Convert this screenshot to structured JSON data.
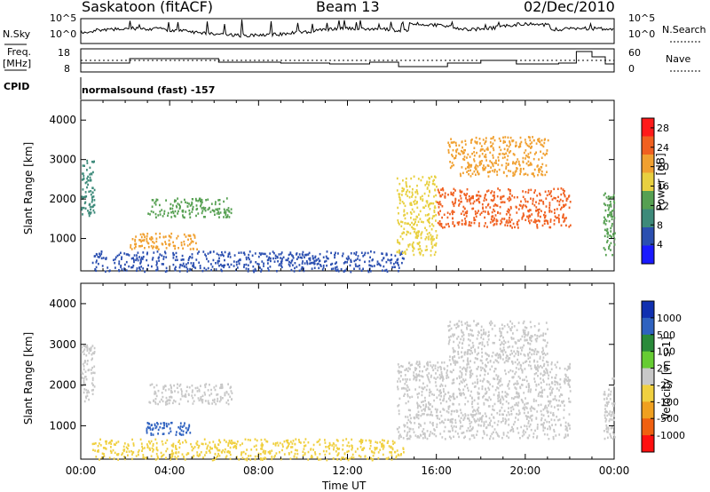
{
  "header": {
    "station": "Saskatoon (fitACF)",
    "beam": "Beam 13",
    "date": "02/Dec/2010"
  },
  "summary": {
    "nsky_label": "N.Sky",
    "nsky_ticks": [
      "10^5",
      "10^0"
    ],
    "nsearch_label": "N.Search",
    "freq_label": "Freq.",
    "freq_unit": "[MHz]",
    "freq_ticks": [
      "18",
      "8"
    ],
    "nave_label": "Nave",
    "nave_ticks": [
      "60",
      "0"
    ],
    "cpid_label": "CPID",
    "cpid_text": "normalsound (fast) -157"
  },
  "chart_data": [
    {
      "type": "heatmap",
      "title": "",
      "ylabel": "Slant Range [km]",
      "xlabel": "",
      "xlim": [
        "00:00",
        "24:00"
      ],
      "ylim": [
        180,
        4500
      ],
      "yticks": [
        1000,
        2000,
        3000,
        4000
      ],
      "colorbar": {
        "label": "Power [dB]",
        "ticks": [
          4,
          8,
          12,
          16,
          20,
          24,
          28
        ],
        "range": [
          0,
          30
        ],
        "colors": [
          "#1a1aff",
          "#2b4fb0",
          "#3d8a7a",
          "#56a052",
          "#e8d040",
          "#f0a030",
          "#f06020",
          "#ff1a1a"
        ]
      },
      "regions": [
        {
          "t": [
            0.0,
            0.6
          ],
          "r": [
            1600,
            3000
          ],
          "level": 8
        },
        {
          "t": [
            3.0,
            6.8
          ],
          "r": [
            1550,
            2050
          ],
          "level": 12
        },
        {
          "t": [
            2.2,
            5.2
          ],
          "r": [
            750,
            1150
          ],
          "level": 20
        },
        {
          "t": [
            0.5,
            14.5
          ],
          "r": [
            180,
            700
          ],
          "level": 6
        },
        {
          "t": [
            14.2,
            16.0
          ],
          "r": [
            600,
            2600
          ],
          "level": 18
        },
        {
          "t": [
            16.0,
            22.0
          ],
          "r": [
            1300,
            2300
          ],
          "level": 25
        },
        {
          "t": [
            16.5,
            21.0
          ],
          "r": [
            2600,
            3600
          ],
          "level": 22
        },
        {
          "t": [
            23.5,
            24.0
          ],
          "r": [
            600,
            2200
          ],
          "level": 14
        }
      ]
    },
    {
      "type": "heatmap",
      "title": "",
      "ylabel": "Slant Range [km]",
      "xlabel": "Time UT",
      "xlim": [
        "00:00",
        "24:00"
      ],
      "ylim": [
        180,
        4500
      ],
      "yticks": [
        1000,
        2000,
        3000,
        4000
      ],
      "xticks": [
        "00:00",
        "04:00",
        "08:00",
        "12:00",
        "16:00",
        "20:00",
        "00:00"
      ],
      "colorbar": {
        "label": "Velocity [m s-1]",
        "ticks": [
          1000,
          500,
          100,
          25,
          -25,
          -100,
          -500,
          -1000
        ],
        "colors": [
          "#1030b0",
          "#2f62c0",
          "#2a8a3a",
          "#66cc33",
          "#c8c8c8",
          "#f0d040",
          "#f0a020",
          "#f06010",
          "#ff1010"
        ]
      },
      "regions": [
        {
          "t": [
            0.0,
            0.6
          ],
          "r": [
            1600,
            3000
          ],
          "velocity": 0
        },
        {
          "t": [
            2.8,
            5.0
          ],
          "r": [
            800,
            1100
          ],
          "velocity": 600
        },
        {
          "t": [
            3.0,
            6.8
          ],
          "r": [
            1550,
            2050
          ],
          "velocity": 0
        },
        {
          "t": [
            0.5,
            14.5
          ],
          "r": [
            180,
            700
          ],
          "velocity": -80
        },
        {
          "t": [
            14.2,
            22.0
          ],
          "r": [
            700,
            2600
          ],
          "velocity": 0
        },
        {
          "t": [
            16.5,
            21.0
          ],
          "r": [
            2600,
            3600
          ],
          "velocity": 0
        },
        {
          "t": [
            23.5,
            24.0
          ],
          "r": [
            700,
            2200
          ],
          "velocity": 0
        }
      ]
    }
  ]
}
